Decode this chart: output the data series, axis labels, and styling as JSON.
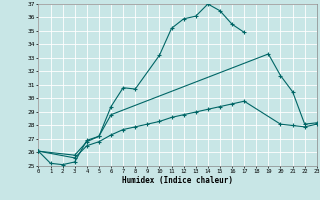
{
  "xlabel": "Humidex (Indice chaleur)",
  "background_color": "#c8e6e6",
  "line_color": "#006666",
  "grid_color": "#ffffff",
  "xlim": [
    0,
    23
  ],
  "ylim": [
    25,
    37
  ],
  "yticks": [
    25,
    26,
    27,
    28,
    29,
    30,
    31,
    32,
    33,
    34,
    35,
    36,
    37
  ],
  "xticks": [
    0,
    1,
    2,
    3,
    4,
    5,
    6,
    7,
    8,
    9,
    10,
    11,
    12,
    13,
    14,
    15,
    16,
    17,
    18,
    19,
    20,
    21,
    22,
    23
  ],
  "line1_x": [
    0,
    1,
    2,
    3,
    4,
    5,
    6,
    7,
    8,
    10,
    11,
    12,
    13,
    14,
    15,
    16,
    17
  ],
  "line1_y": [
    26.1,
    25.2,
    25.1,
    25.3,
    26.9,
    27.2,
    29.4,
    30.8,
    30.7,
    33.2,
    35.2,
    35.9,
    36.1,
    37.0,
    36.5,
    35.5,
    34.9
  ],
  "line2_x": [
    0,
    3,
    4,
    5,
    6,
    19,
    20,
    21,
    22,
    23
  ],
  "line2_y": [
    26.1,
    25.8,
    26.8,
    27.2,
    28.8,
    33.3,
    31.7,
    30.5,
    28.1,
    28.2
  ],
  "line3_x": [
    0,
    3,
    4,
    5,
    6,
    7,
    8,
    9,
    10,
    11,
    12,
    13,
    14,
    15,
    16,
    17,
    20,
    21,
    22,
    23
  ],
  "line3_y": [
    26.1,
    25.6,
    26.5,
    26.8,
    27.3,
    27.7,
    27.9,
    28.1,
    28.3,
    28.6,
    28.8,
    29.0,
    29.2,
    29.4,
    29.6,
    29.8,
    28.1,
    28.0,
    27.9,
    28.1
  ]
}
